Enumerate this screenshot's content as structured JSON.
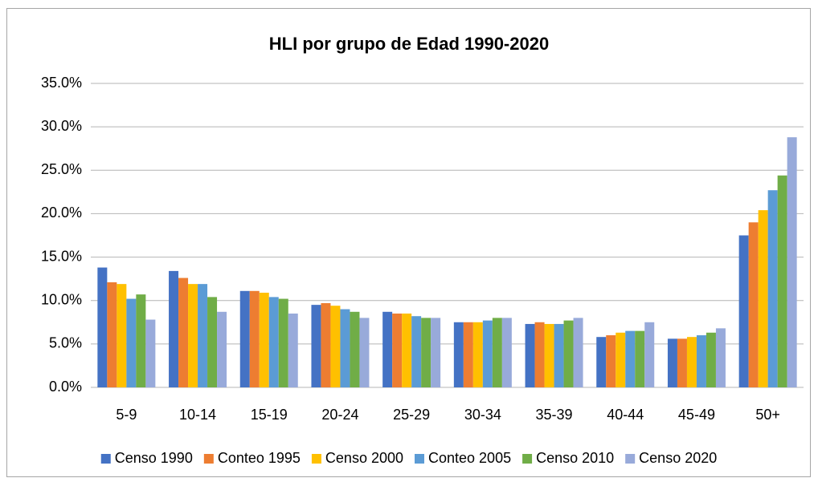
{
  "chart_data": {
    "type": "bar",
    "title": "HLI por grupo de Edad 1990-2020",
    "categories": [
      "5-9",
      "10-14",
      "15-19",
      "20-24",
      "25-29",
      "30-34",
      "35-39",
      "40-44",
      "45-49",
      "50+"
    ],
    "series": [
      {
        "name": "Censo 1990",
        "color": "#4472c4",
        "values": [
          13.8,
          13.4,
          11.1,
          9.5,
          8.7,
          7.5,
          7.3,
          5.8,
          5.6,
          17.5
        ]
      },
      {
        "name": "Conteo 1995",
        "color": "#ed7d31",
        "values": [
          12.1,
          12.6,
          11.1,
          9.7,
          8.5,
          7.5,
          7.5,
          6.0,
          5.6,
          19.0
        ]
      },
      {
        "name": "Censo 2000",
        "color": "#ffc000",
        "values": [
          11.9,
          11.9,
          10.9,
          9.4,
          8.5,
          7.5,
          7.3,
          6.3,
          5.8,
          20.4
        ]
      },
      {
        "name": "Conteo 2005",
        "color": "#5b9bd5",
        "values": [
          10.2,
          11.9,
          10.4,
          9.0,
          8.2,
          7.7,
          7.3,
          6.5,
          6.0,
          22.7
        ]
      },
      {
        "name": "Censo 2010",
        "color": "#70ad47",
        "values": [
          10.7,
          10.4,
          10.2,
          8.7,
          8.0,
          8.0,
          7.7,
          6.5,
          6.3,
          24.4
        ]
      },
      {
        "name": "Censo 2020",
        "color": "#98aada",
        "values": [
          7.8,
          8.7,
          8.5,
          8.0,
          8.0,
          8.0,
          8.0,
          7.5,
          6.8,
          28.8
        ]
      }
    ],
    "ylim": [
      0,
      35
    ],
    "yticks": [
      {
        "value": 0,
        "label": "0.0%"
      },
      {
        "value": 5,
        "label": "5.0%"
      },
      {
        "value": 10,
        "label": "10.0%"
      },
      {
        "value": 15,
        "label": "15.0%"
      },
      {
        "value": 20,
        "label": "20.0%"
      },
      {
        "value": 25,
        "label": "25.0%"
      },
      {
        "value": 30,
        "label": "30.0%"
      },
      {
        "value": 35,
        "label": "35.0%"
      }
    ],
    "grid": true,
    "legend": "bottom"
  }
}
